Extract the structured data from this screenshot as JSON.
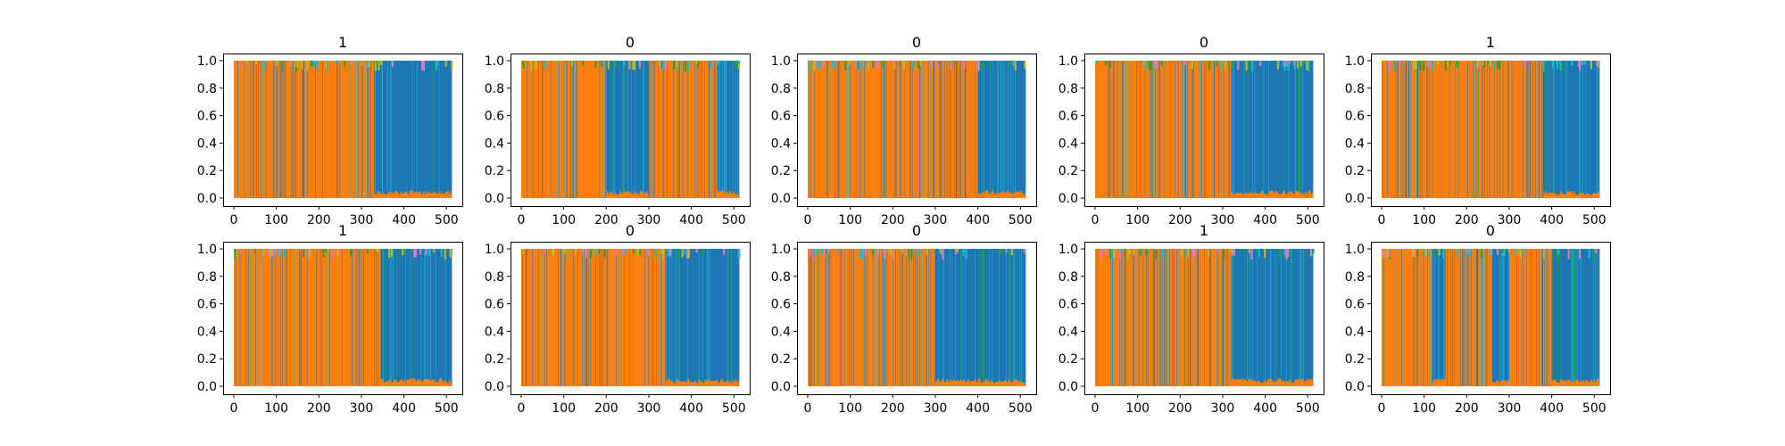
{
  "figure": {
    "rows": 2,
    "cols": 5,
    "colors": {
      "background": "#ffffff",
      "axes": "#000000",
      "series_primary": "#1f77b4",
      "series_secondary": "#ff7f0e",
      "series_accent_cyan": "#17becf",
      "series_accent_olive": "#bcbd22",
      "series_accent_green": "#2ca02c",
      "series_accent_pink": "#e377c2"
    }
  },
  "chart_data": [
    {
      "type": "area",
      "title": "1",
      "xlim": [
        0,
        512
      ],
      "ylim": [
        0.0,
        1.0
      ],
      "xticks": [
        "0",
        "100",
        "200",
        "300",
        "400",
        "500"
      ],
      "yticks": [
        "0.0",
        "0.2",
        "0.4",
        "0.6",
        "0.8",
        "1.0"
      ],
      "series": [
        {
          "values_x_range": [
            0,
            330
          ],
          "dominant": "orange"
        },
        {
          "values_x_range": [
            330,
            512
          ],
          "dominant": "blue"
        }
      ],
      "grid": false
    },
    {
      "type": "area",
      "title": "0",
      "xlim": [
        0,
        512
      ],
      "ylim": [
        0.0,
        1.0
      ],
      "xticks": [
        "0",
        "100",
        "200",
        "300",
        "400",
        "500"
      ],
      "yticks": [
        "0.0",
        "0.2",
        "0.4",
        "0.6",
        "0.8",
        "1.0"
      ],
      "series": [
        {
          "values_x_range": [
            0,
            200
          ],
          "dominant": "orange"
        },
        {
          "values_x_range": [
            200,
            300
          ],
          "dominant": "blue"
        },
        {
          "values_x_range": [
            300,
            460
          ],
          "dominant": "orange"
        },
        {
          "values_x_range": [
            460,
            512
          ],
          "dominant": "blue"
        }
      ],
      "grid": false
    },
    {
      "type": "area",
      "title": "0",
      "xlim": [
        0,
        512
      ],
      "ylim": [
        0.0,
        1.0
      ],
      "xticks": [
        "0",
        "100",
        "200",
        "300",
        "400",
        "500"
      ],
      "yticks": [
        "0.0",
        "0.2",
        "0.4",
        "0.6",
        "0.8",
        "1.0"
      ],
      "series": [
        {
          "values_x_range": [
            0,
            400
          ],
          "dominant": "orange"
        },
        {
          "values_x_range": [
            400,
            512
          ],
          "dominant": "blue"
        }
      ],
      "grid": false
    },
    {
      "type": "area",
      "title": "0",
      "xlim": [
        0,
        512
      ],
      "ylim": [
        0.0,
        1.0
      ],
      "xticks": [
        "0",
        "100",
        "200",
        "300",
        "400",
        "500"
      ],
      "yticks": [
        "0.0",
        "0.2",
        "0.4",
        "0.6",
        "0.8",
        "1.0"
      ],
      "series": [
        {
          "values_x_range": [
            0,
            320
          ],
          "dominant": "orange"
        },
        {
          "values_x_range": [
            320,
            512
          ],
          "dominant": "blue"
        }
      ],
      "grid": false
    },
    {
      "type": "area",
      "title": "1",
      "xlim": [
        0,
        512
      ],
      "ylim": [
        0.0,
        1.0
      ],
      "xticks": [
        "0",
        "100",
        "200",
        "300",
        "400",
        "500"
      ],
      "yticks": [
        "0.0",
        "0.2",
        "0.4",
        "0.6",
        "0.8",
        "1.0"
      ],
      "series": [
        {
          "values_x_range": [
            0,
            380
          ],
          "dominant": "orange"
        },
        {
          "values_x_range": [
            380,
            512
          ],
          "dominant": "blue"
        }
      ],
      "grid": false
    },
    {
      "type": "area",
      "title": "1",
      "xlim": [
        0,
        512
      ],
      "ylim": [
        0.0,
        1.0
      ],
      "xticks": [
        "0",
        "100",
        "200",
        "300",
        "400",
        "500"
      ],
      "yticks": [
        "0.0",
        "0.2",
        "0.4",
        "0.6",
        "0.8",
        "1.0"
      ],
      "series": [
        {
          "values_x_range": [
            0,
            345
          ],
          "dominant": "orange"
        },
        {
          "values_x_range": [
            345,
            512
          ],
          "dominant": "blue"
        }
      ],
      "grid": false
    },
    {
      "type": "area",
      "title": "0",
      "xlim": [
        0,
        512
      ],
      "ylim": [
        0.0,
        1.0
      ],
      "xticks": [
        "0",
        "100",
        "200",
        "300",
        "400",
        "500"
      ],
      "yticks": [
        "0.0",
        "0.2",
        "0.4",
        "0.6",
        "0.8",
        "1.0"
      ],
      "series": [
        {
          "values_x_range": [
            0,
            340
          ],
          "dominant": "orange"
        },
        {
          "values_x_range": [
            340,
            512
          ],
          "dominant": "blue"
        }
      ],
      "grid": false
    },
    {
      "type": "area",
      "title": "0",
      "xlim": [
        0,
        512
      ],
      "ylim": [
        0.0,
        1.0
      ],
      "xticks": [
        "0",
        "100",
        "200",
        "300",
        "400",
        "500"
      ],
      "yticks": [
        "0.0",
        "0.2",
        "0.4",
        "0.6",
        "0.8",
        "1.0"
      ],
      "series": [
        {
          "values_x_range": [
            0,
            300
          ],
          "dominant": "orange"
        },
        {
          "values_x_range": [
            300,
            512
          ],
          "dominant": "blue"
        }
      ],
      "grid": false
    },
    {
      "type": "area",
      "title": "1",
      "xlim": [
        0,
        512
      ],
      "ylim": [
        0.0,
        1.0
      ],
      "xticks": [
        "0",
        "100",
        "200",
        "300",
        "400",
        "500"
      ],
      "yticks": [
        "0.0",
        "0.2",
        "0.4",
        "0.6",
        "0.8",
        "1.0"
      ],
      "series": [
        {
          "values_x_range": [
            0,
            320
          ],
          "dominant": "orange"
        },
        {
          "values_x_range": [
            320,
            512
          ],
          "dominant": "blue"
        }
      ],
      "grid": false
    },
    {
      "type": "area",
      "title": "0",
      "xlim": [
        0,
        512
      ],
      "ylim": [
        0.0,
        1.0
      ],
      "xticks": [
        "0",
        "100",
        "200",
        "300",
        "400",
        "500"
      ],
      "yticks": [
        "0.0",
        "0.2",
        "0.4",
        "0.6",
        "0.8",
        "1.0"
      ],
      "series": [
        {
          "values_x_range": [
            0,
            120
          ],
          "dominant": "orange"
        },
        {
          "values_x_range": [
            120,
            150
          ],
          "dominant": "blue"
        },
        {
          "values_x_range": [
            150,
            260
          ],
          "dominant": "orange"
        },
        {
          "values_x_range": [
            260,
            300
          ],
          "dominant": "blue"
        },
        {
          "values_x_range": [
            300,
            400
          ],
          "dominant": "orange"
        },
        {
          "values_x_range": [
            400,
            512
          ],
          "dominant": "blue"
        }
      ],
      "grid": false
    }
  ]
}
